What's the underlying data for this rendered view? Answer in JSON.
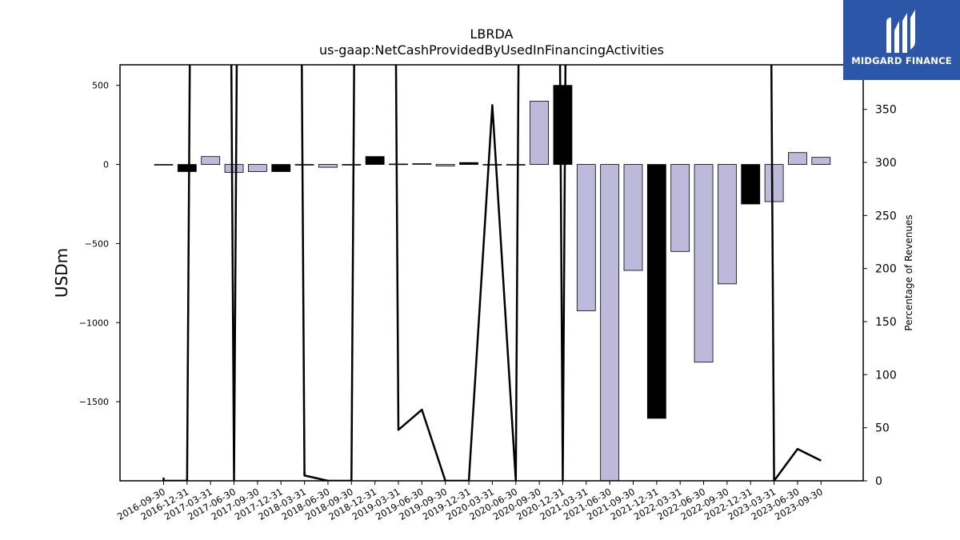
{
  "chart_data": {
    "type": "bar",
    "title": "LBRDA",
    "subtitle": "us-gaap:NetCashProvidedByUsedInFinancingActivities",
    "ylabel": "USDm",
    "y2label": "Percentage of Revenues",
    "ylim": [
      -2000,
      630
    ],
    "y2lim": [
      0,
      392
    ],
    "yticks": [
      500,
      0,
      -500,
      -1000,
      -1500
    ],
    "ytick_labels": [
      "500",
      "0",
      "−500",
      "−1000",
      "−1500"
    ],
    "y2ticks": [
      0,
      50,
      100,
      150,
      200,
      250,
      300,
      350
    ],
    "categories": [
      "2016-09-30",
      "2016-12-31",
      "2017-03-31",
      "2017-06-30",
      "2017-09-30",
      "2017-12-31",
      "2018-03-31",
      "2018-06-30",
      "2018-09-30",
      "2018-12-31",
      "2019-03-31",
      "2019-06-30",
      "2019-09-30",
      "2019-12-31",
      "2020-03-31",
      "2020-06-30",
      "2020-09-30",
      "2020-12-31",
      "2021-03-31",
      "2021-06-30",
      "2021-09-30",
      "2021-12-31",
      "2022-03-31",
      "2022-06-30",
      "2022-09-30",
      "2022-12-31",
      "2023-03-31",
      "2023-06-30",
      "2023-09-30"
    ],
    "series": [
      {
        "kind": "bar",
        "values": [
          0,
          -45,
          50,
          -50,
          -45,
          -45,
          -2,
          -18,
          -3,
          50,
          3,
          5,
          -10,
          12,
          -2,
          -2,
          400,
          500,
          -925,
          -2000,
          -670,
          -1605,
          -550,
          -1250,
          -755,
          -250,
          -235,
          75,
          45
        ],
        "highlight": [
          false,
          true,
          false,
          false,
          false,
          true,
          false,
          false,
          false,
          true,
          true,
          false,
          false,
          true,
          false,
          false,
          false,
          true,
          false,
          false,
          false,
          true,
          false,
          false,
          false,
          true,
          false,
          false,
          false
        ]
      },
      {
        "kind": "line",
        "axis": "y2",
        "values": [
          0,
          0,
          null,
          0,
          null,
          null,
          5,
          0,
          0,
          null,
          48,
          67,
          0,
          0,
          354,
          0,
          null,
          0,
          null,
          null,
          null,
          null,
          null,
          null,
          null,
          null,
          0,
          30,
          19
        ]
      }
    ],
    "colors": {
      "bar": "#bcb9db",
      "bar_highlight": "#000000",
      "line": "#000000"
    },
    "legend": "none"
  },
  "logo": {
    "text": "MIDGARD FINANCE",
    "background": "#2c57a8"
  }
}
